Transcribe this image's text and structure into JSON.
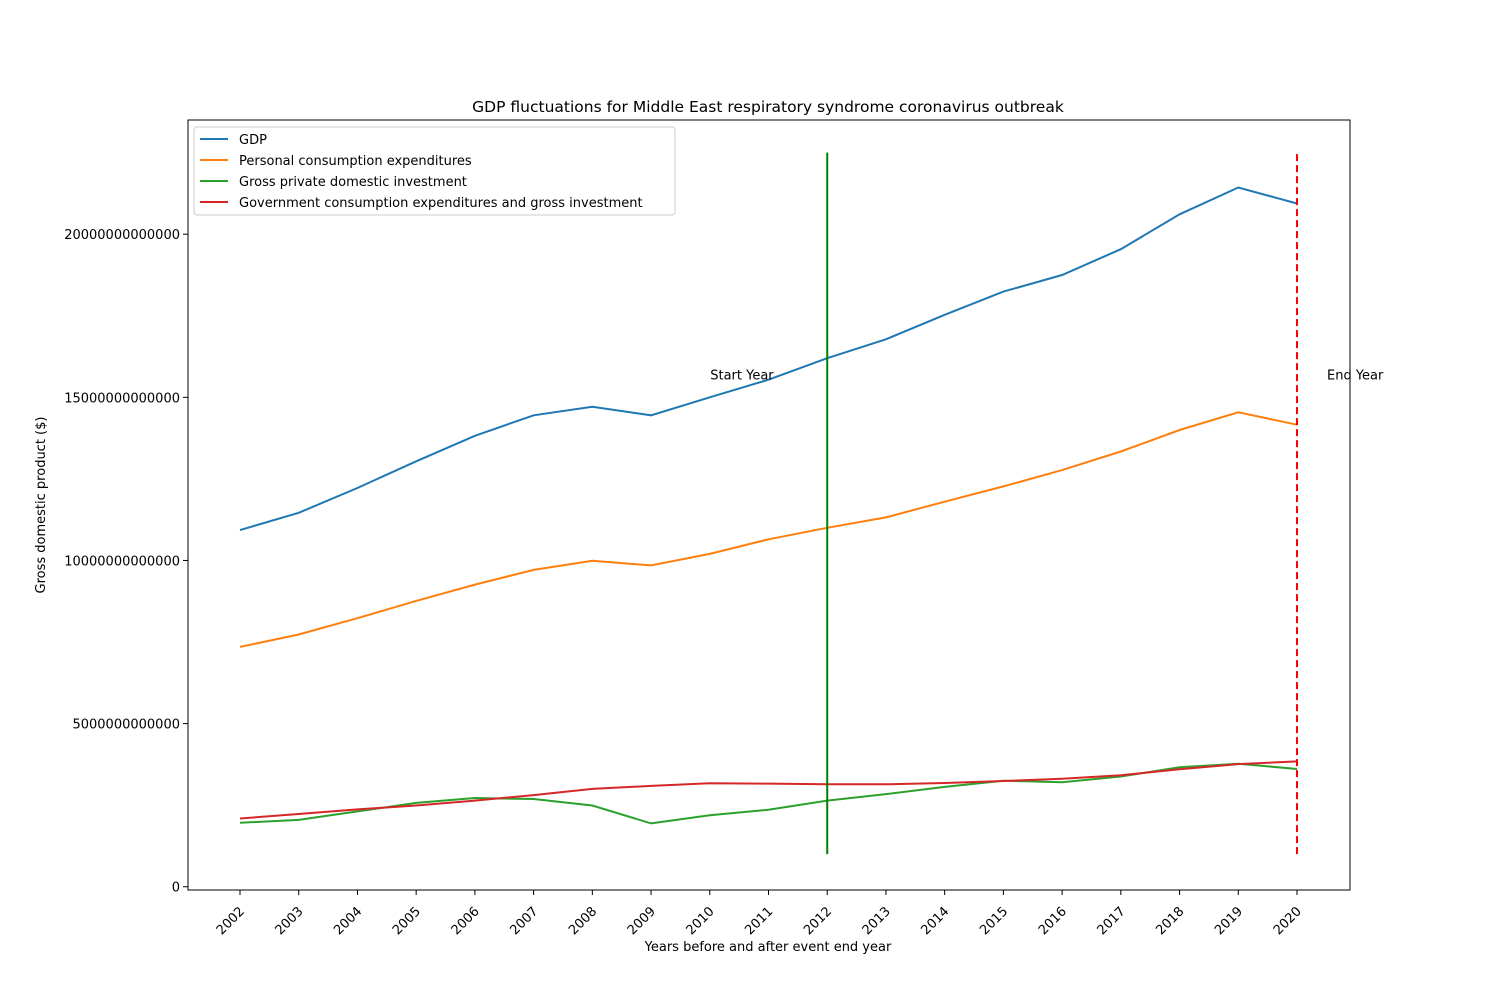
{
  "chart_data": {
    "type": "line",
    "title": "GDP fluctuations for Middle East respiratory syndrome coronavirus outbreak",
    "xlabel": "Years before and after event end year",
    "ylabel": "Gross domestic product ($)",
    "categories": [
      "2002",
      "2003",
      "2004",
      "2005",
      "2006",
      "2007",
      "2008",
      "2009",
      "2010",
      "2011",
      "2012",
      "2013",
      "2014",
      "2015",
      "2016",
      "2017",
      "2018",
      "2019",
      "2020"
    ],
    "yticks": [
      0,
      5000000000000,
      10000000000000,
      15000000000000,
      20000000000000
    ],
    "ytick_labels": [
      "0",
      "5000000000000",
      "10000000000000",
      "15000000000000",
      "20000000000000"
    ],
    "ylim": [
      -100000000000,
      23500000000000
    ],
    "grid": false,
    "legend_position": "top-left",
    "series": [
      {
        "name": "GDP",
        "color": "#1f77b4",
        "values": [
          10930000000000,
          11460000000000,
          12220000000000,
          13040000000000,
          13820000000000,
          14450000000000,
          14710000000000,
          14450000000000,
          15000000000000,
          15540000000000,
          16200000000000,
          16780000000000,
          17530000000000,
          18240000000000,
          18750000000000,
          19540000000000,
          20610000000000,
          21430000000000,
          20940000000000
        ]
      },
      {
        "name": "Personal consumption expenditures",
        "color": "#ff7f0e",
        "values": [
          7350000000000,
          7730000000000,
          8230000000000,
          8760000000000,
          9260000000000,
          9710000000000,
          9990000000000,
          9850000000000,
          10200000000000,
          10650000000000,
          11000000000000,
          11320000000000,
          11800000000000,
          12270000000000,
          12770000000000,
          13340000000000,
          14000000000000,
          14540000000000,
          14160000000000
        ]
      },
      {
        "name": "Gross private domestic investment",
        "color": "#2ca02c",
        "values": [
          1960000000000,
          2050000000000,
          2310000000000,
          2570000000000,
          2720000000000,
          2690000000000,
          2490000000000,
          1940000000000,
          2190000000000,
          2360000000000,
          2640000000000,
          2840000000000,
          3060000000000,
          3250000000000,
          3200000000000,
          3380000000000,
          3660000000000,
          3770000000000,
          3610000000000
        ]
      },
      {
        "name": "Government consumption expenditures and gross investment",
        "color": "#d62728",
        "values": [
          2090000000000,
          2230000000000,
          2370000000000,
          2490000000000,
          2640000000000,
          2810000000000,
          3000000000000,
          3090000000000,
          3170000000000,
          3160000000000,
          3140000000000,
          3140000000000,
          3180000000000,
          3240000000000,
          3310000000000,
          3420000000000,
          3600000000000,
          3760000000000,
          3840000000000
        ]
      }
    ],
    "event_lines": [
      {
        "label": "Start Year",
        "x": "2012",
        "color": "#008000",
        "style": "solid",
        "y_from": 1000000000000,
        "y_to": 22500000000000,
        "label_y": 15700000000000
      },
      {
        "label": "End Year",
        "x": "2020",
        "color": "#ff0000",
        "style": "dashed",
        "y_from": 1000000000000,
        "y_to": 22500000000000,
        "label_y": 15700000000000
      }
    ]
  }
}
